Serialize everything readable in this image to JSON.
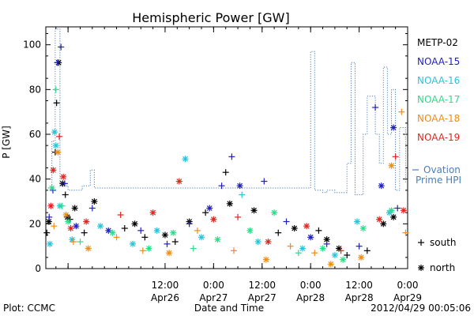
{
  "chart_data": {
    "type": "scatter",
    "title": "Hemispheric Power [GW]",
    "ylabel": "P [GW]",
    "xlabel": "Date and Time",
    "ylim": [
      0,
      108
    ],
    "yticks": [
      0,
      20,
      40,
      60,
      80,
      100
    ],
    "xlim": [
      "2012-04-25T06:30",
      "2012-04-29T00:00"
    ],
    "xticks": [
      {
        "t": "2012-04-25T12:00",
        "top": "",
        "bottom": ""
      },
      {
        "t": "2012-04-26T12:00",
        "top": "12:00",
        "bottom": "Apr26"
      },
      {
        "t": "2012-04-27T00:00",
        "top": "0:00",
        "bottom": "Apr27"
      },
      {
        "t": "2012-04-27T12:00",
        "top": "12:00",
        "bottom": "Apr27"
      },
      {
        "t": "2012-04-28T00:00",
        "top": "0:00",
        "bottom": "Apr28"
      },
      {
        "t": "2012-04-28T12:00",
        "top": "12:00",
        "bottom": "Apr28"
      },
      {
        "t": "2012-04-29T00:00",
        "top": "0:00",
        "bottom": "Apr29"
      }
    ],
    "series": [
      {
        "name": "METP-02",
        "color": "#000000",
        "points": [
          [
            "2012-04-25T06:45",
            16,
            "+"
          ],
          [
            "2012-04-25T07:15",
            21,
            "*"
          ],
          [
            "2012-04-25T08:50",
            52,
            "+"
          ],
          [
            "2012-04-25T09:10",
            74,
            "+"
          ],
          [
            "2012-04-25T09:40",
            92,
            "*"
          ],
          [
            "2012-04-25T10:40",
            38,
            "*"
          ],
          [
            "2012-04-25T11:20",
            33,
            "+"
          ],
          [
            "2012-04-25T11:50",
            23,
            "*"
          ],
          [
            "2012-04-25T12:30",
            22,
            "+"
          ],
          [
            "2012-04-25T13:40",
            27,
            "*"
          ],
          [
            "2012-04-25T16:00",
            16,
            "+"
          ],
          [
            "2012-04-25T18:30",
            30,
            "*"
          ],
          [
            "2012-04-26T02:00",
            18,
            "+"
          ],
          [
            "2012-04-26T04:30",
            20,
            "*"
          ],
          [
            "2012-04-26T07:00",
            14,
            "+"
          ],
          [
            "2012-04-26T12:00",
            15,
            "*"
          ],
          [
            "2012-04-26T14:30",
            12,
            "+"
          ],
          [
            "2012-04-26T18:00",
            21,
            "*"
          ],
          [
            "2012-04-26T22:00",
            25,
            "+"
          ],
          [
            "2012-04-27T03:00",
            43,
            "+"
          ],
          [
            "2012-04-27T04:00",
            29,
            "*"
          ],
          [
            "2012-04-27T10:00",
            26,
            "*"
          ],
          [
            "2012-04-27T16:00",
            16,
            "+"
          ],
          [
            "2012-04-27T20:00",
            18,
            "*"
          ],
          [
            "2012-04-28T02:00",
            17,
            "+"
          ],
          [
            "2012-04-28T04:00",
            13,
            "*"
          ],
          [
            "2012-04-28T07:00",
            9,
            "*"
          ],
          [
            "2012-04-28T09:00",
            6,
            "+"
          ],
          [
            "2012-04-28T14:00",
            8,
            "+"
          ],
          [
            "2012-04-28T18:00",
            20,
            "*"
          ],
          [
            "2012-04-28T20:30",
            23,
            "*"
          ]
        ]
      },
      {
        "name": "NOAA-15",
        "color": "#1f1fbf",
        "points": [
          [
            "2012-04-25T07:20",
            23,
            "+"
          ],
          [
            "2012-04-25T08:15",
            35,
            "+"
          ],
          [
            "2012-04-25T09:20",
            92,
            "+"
          ],
          [
            "2012-04-25T10:15",
            99,
            "+"
          ],
          [
            "2012-04-25T11:10",
            38,
            "+"
          ],
          [
            "2012-04-25T14:00",
            19,
            "*"
          ],
          [
            "2012-04-25T18:00",
            27,
            "+"
          ],
          [
            "2012-04-25T22:00",
            17,
            "*"
          ],
          [
            "2012-04-26T06:00",
            17,
            "+"
          ],
          [
            "2012-04-26T12:30",
            11,
            "+"
          ],
          [
            "2012-04-26T18:00",
            20,
            "+"
          ],
          [
            "2012-04-26T23:00",
            27,
            "*"
          ],
          [
            "2012-04-27T02:00",
            37,
            "+"
          ],
          [
            "2012-04-27T04:30",
            50,
            "+"
          ],
          [
            "2012-04-27T06:30",
            37,
            "*"
          ],
          [
            "2012-04-27T12:30",
            39,
            "+"
          ],
          [
            "2012-04-27T18:00",
            21,
            "+"
          ],
          [
            "2012-04-28T00:00",
            14,
            "*"
          ],
          [
            "2012-04-28T04:00",
            11,
            "+"
          ],
          [
            "2012-04-28T12:00",
            10,
            "+"
          ],
          [
            "2012-04-28T16:00",
            72,
            "+"
          ],
          [
            "2012-04-28T17:30",
            37,
            "*"
          ],
          [
            "2012-04-28T20:30",
            63,
            "*"
          ],
          [
            "2012-04-28T21:30",
            27,
            "+"
          ]
        ]
      },
      {
        "name": "NOAA-16",
        "color": "#27c4d8",
        "points": [
          [
            "2012-04-25T07:30",
            11,
            "*"
          ],
          [
            "2012-04-25T08:40",
            61,
            "*"
          ],
          [
            "2012-04-25T09:00",
            55,
            "*"
          ],
          [
            "2012-04-25T10:00",
            28,
            "*"
          ],
          [
            "2012-04-25T13:00",
            13,
            "*"
          ],
          [
            "2012-04-25T20:00",
            19,
            "*"
          ],
          [
            "2012-04-26T04:00",
            11,
            "*"
          ],
          [
            "2012-04-26T10:00",
            17,
            "*"
          ],
          [
            "2012-04-26T17:00",
            49,
            "*"
          ],
          [
            "2012-04-26T21:00",
            14,
            "*"
          ],
          [
            "2012-04-27T07:00",
            33,
            "+"
          ],
          [
            "2012-04-27T11:00",
            12,
            "*"
          ],
          [
            "2012-04-27T22:00",
            9,
            "*"
          ],
          [
            "2012-04-28T06:00",
            6,
            "*"
          ],
          [
            "2012-04-28T11:30",
            21,
            "*"
          ],
          [
            "2012-04-28T19:30",
            25,
            "*"
          ]
        ]
      },
      {
        "name": "NOAA-17",
        "color": "#2cdc8a",
        "points": [
          [
            "2012-04-25T08:00",
            36,
            "*"
          ],
          [
            "2012-04-25T09:00",
            80,
            "+"
          ],
          [
            "2012-04-25T10:30",
            28,
            "+"
          ],
          [
            "2012-04-25T12:00",
            21,
            "*"
          ],
          [
            "2012-04-25T15:00",
            12,
            "+"
          ],
          [
            "2012-04-25T23:00",
            16,
            "*"
          ],
          [
            "2012-04-26T08:00",
            9,
            "*"
          ],
          [
            "2012-04-26T14:00",
            16,
            "*"
          ],
          [
            "2012-04-26T19:00",
            9,
            "+"
          ],
          [
            "2012-04-27T01:00",
            13,
            "*"
          ],
          [
            "2012-04-27T09:00",
            17,
            "*"
          ],
          [
            "2012-04-27T15:00",
            25,
            "*"
          ],
          [
            "2012-04-27T21:00",
            7,
            "+"
          ],
          [
            "2012-04-28T03:00",
            9,
            "*"
          ],
          [
            "2012-04-28T08:00",
            4,
            "*"
          ],
          [
            "2012-04-28T13:00",
            18,
            "*"
          ],
          [
            "2012-04-28T20:00",
            26,
            "*"
          ]
        ]
      },
      {
        "name": "NOAA-18",
        "color": "#f08c10",
        "points": [
          [
            "2012-04-25T08:30",
            19,
            "+"
          ],
          [
            "2012-04-25T09:30",
            52,
            "*"
          ],
          [
            "2012-04-25T11:30",
            24,
            "*"
          ],
          [
            "2012-04-25T13:20",
            12,
            "+"
          ],
          [
            "2012-04-25T17:00",
            9,
            "*"
          ],
          [
            "2012-04-26T00:00",
            14,
            "+"
          ],
          [
            "2012-04-26T06:30",
            8,
            "+"
          ],
          [
            "2012-04-26T13:00",
            7,
            "*"
          ],
          [
            "2012-04-26T20:00",
            17,
            "+"
          ],
          [
            "2012-04-27T05:00",
            8,
            "+"
          ],
          [
            "2012-04-27T13:00",
            4,
            "*"
          ],
          [
            "2012-04-27T19:00",
            10,
            "+"
          ],
          [
            "2012-04-28T01:00",
            7,
            "+"
          ],
          [
            "2012-04-28T05:00",
            2,
            "*"
          ],
          [
            "2012-04-28T12:30",
            5,
            "*"
          ],
          [
            "2012-04-28T20:00",
            46,
            "*"
          ],
          [
            "2012-04-28T22:30",
            70,
            "+"
          ],
          [
            "2012-04-28T23:30",
            16,
            "+"
          ]
        ]
      },
      {
        "name": "NOAA-19",
        "color": "#e0261e",
        "points": [
          [
            "2012-04-25T07:45",
            28,
            "*"
          ],
          [
            "2012-04-25T08:20",
            44,
            "*"
          ],
          [
            "2012-04-25T09:50",
            59,
            "+"
          ],
          [
            "2012-04-25T10:50",
            41,
            "*"
          ],
          [
            "2012-04-25T12:40",
            18,
            "*"
          ],
          [
            "2012-04-25T16:30",
            21,
            "*"
          ],
          [
            "2012-04-26T01:00",
            24,
            "+"
          ],
          [
            "2012-04-26T09:00",
            25,
            "*"
          ],
          [
            "2012-04-26T15:30",
            39,
            "*"
          ],
          [
            "2012-04-27T00:00",
            22,
            "*"
          ],
          [
            "2012-04-27T06:00",
            23,
            "+"
          ],
          [
            "2012-04-27T13:30",
            12,
            "*"
          ],
          [
            "2012-04-27T23:00",
            19,
            "*"
          ],
          [
            "2012-04-28T07:30",
            8,
            "+"
          ],
          [
            "2012-04-28T17:00",
            22,
            "*"
          ],
          [
            "2012-04-28T21:00",
            50,
            "+"
          ],
          [
            "2012-04-28T23:00",
            26,
            "*"
          ]
        ]
      }
    ],
    "ovation": {
      "name": "Ovation Prime HPI",
      "color": "#4a7fbf",
      "points": [
        [
          "2012-04-25T07:00",
          36
        ],
        [
          "2012-04-25T08:00",
          36
        ],
        [
          "2012-04-25T08:00",
          57
        ],
        [
          "2012-04-25T08:50",
          57
        ],
        [
          "2012-04-25T08:50",
          107
        ],
        [
          "2012-04-25T10:00",
          107
        ],
        [
          "2012-04-25T10:00",
          37
        ],
        [
          "2012-04-25T12:00",
          37
        ],
        [
          "2012-04-25T12:00",
          35
        ],
        [
          "2012-04-25T15:30",
          35
        ],
        [
          "2012-04-25T15:30",
          37
        ],
        [
          "2012-04-25T17:30",
          37
        ],
        [
          "2012-04-25T17:30",
          44
        ],
        [
          "2012-04-25T18:30",
          44
        ],
        [
          "2012-04-25T18:30",
          36
        ],
        [
          "2012-04-28T00:00",
          36
        ],
        [
          "2012-04-28T00:00",
          97
        ],
        [
          "2012-04-28T01:00",
          97
        ],
        [
          "2012-04-28T01:00",
          35
        ],
        [
          "2012-04-28T03:00",
          35
        ],
        [
          "2012-04-28T03:00",
          34
        ],
        [
          "2012-04-28T04:00",
          34
        ],
        [
          "2012-04-28T04:00",
          35
        ],
        [
          "2012-04-28T06:00",
          35
        ],
        [
          "2012-04-28T06:00",
          34
        ],
        [
          "2012-04-28T09:00",
          34
        ],
        [
          "2012-04-28T09:00",
          47
        ],
        [
          "2012-04-28T10:00",
          47
        ],
        [
          "2012-04-28T10:00",
          92
        ],
        [
          "2012-04-28T11:00",
          92
        ],
        [
          "2012-04-28T11:00",
          33
        ],
        [
          "2012-04-28T13:00",
          33
        ],
        [
          "2012-04-28T13:00",
          60
        ],
        [
          "2012-04-28T14:00",
          60
        ],
        [
          "2012-04-28T14:00",
          77
        ],
        [
          "2012-04-28T16:00",
          77
        ],
        [
          "2012-04-28T16:00",
          60
        ],
        [
          "2012-04-28T17:00",
          60
        ],
        [
          "2012-04-28T17:00",
          47
        ],
        [
          "2012-04-28T18:00",
          47
        ],
        [
          "2012-04-28T18:00",
          90
        ],
        [
          "2012-04-28T19:00",
          90
        ],
        [
          "2012-04-28T19:00",
          60
        ],
        [
          "2012-04-28T20:00",
          60
        ],
        [
          "2012-04-28T20:00",
          80
        ],
        [
          "2012-04-28T21:00",
          80
        ],
        [
          "2012-04-28T21:00",
          35
        ],
        [
          "2012-04-28T22:00",
          35
        ],
        [
          "2012-04-28T22:00",
          63
        ],
        [
          "2012-04-28T23:30",
          63
        ],
        [
          "2012-04-28T23:30",
          38
        ]
      ]
    },
    "legend": {
      "placement": "right",
      "ovation_label_line1": "Ovation",
      "ovation_label_line2": "Prime HPI",
      "south_label": "south",
      "north_label": "north",
      "south_symbol": "+",
      "north_symbol": "*"
    }
  },
  "footer": {
    "plot_credit": "Plot: CCMC",
    "timestamp": "2012/04/29 00:05:06"
  }
}
